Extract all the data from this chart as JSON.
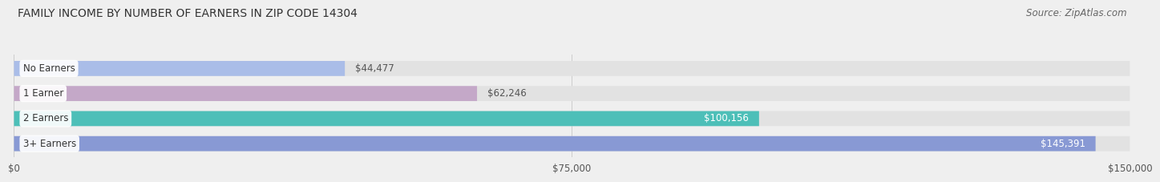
{
  "title": "FAMILY INCOME BY NUMBER OF EARNERS IN ZIP CODE 14304",
  "source": "Source: ZipAtlas.com",
  "categories": [
    "No Earners",
    "1 Earner",
    "2 Earners",
    "3+ Earners"
  ],
  "values": [
    44477,
    62246,
    100156,
    145391
  ],
  "xlim": [
    0,
    150000
  ],
  "xticks": [
    0,
    75000,
    150000
  ],
  "xticklabels": [
    "$0",
    "$75,000",
    "$150,000"
  ],
  "bar_colors": [
    "#aabde8",
    "#c4a8c8",
    "#4dbfb8",
    "#8899d4"
  ],
  "bar_label_colors": [
    "#555555",
    "#555555",
    "#ffffff",
    "#ffffff"
  ],
  "value_labels": [
    "$44,477",
    "$62,246",
    "$100,156",
    "$145,391"
  ],
  "background_color": "#efefef",
  "bar_bg_color": "#e2e2e2",
  "title_fontsize": 10,
  "source_fontsize": 8.5,
  "label_fontsize": 8.5,
  "tick_fontsize": 8.5
}
